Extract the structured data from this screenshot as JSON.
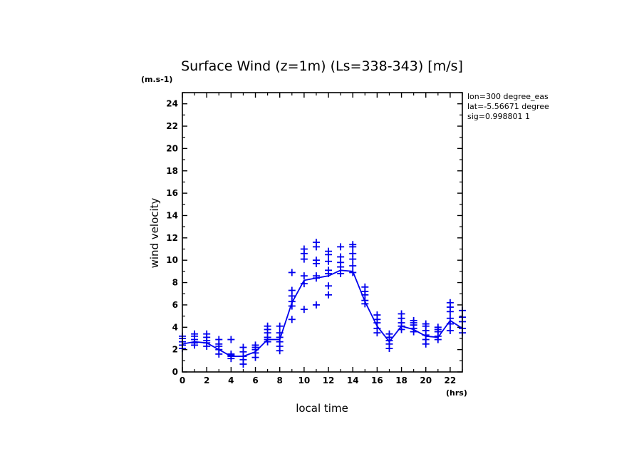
{
  "chart_data": {
    "type": "scatter",
    "title": "Surface Wind (z=1m) (Ls=338-343) [m/s]",
    "ylabel": "wind velocity",
    "xlabel": "local time",
    "y_unit": "(m.s-1)",
    "x_unit": "(hrs)",
    "xlim": [
      0,
      23
    ],
    "ylim": [
      0,
      25
    ],
    "xticks": [
      0,
      2,
      4,
      6,
      8,
      10,
      12,
      14,
      16,
      18,
      20,
      22
    ],
    "yticks": [
      0,
      2,
      4,
      6,
      8,
      10,
      12,
      14,
      16,
      18,
      20,
      22,
      24
    ],
    "grid": false,
    "info_lines": [
      "lon=300 degree_eas",
      "lat=-5.56671 degree",
      "sig=0.998801 1"
    ],
    "color": "#0000ee",
    "series": [
      {
        "style": "markers",
        "points": [
          [
            0,
            2.1
          ],
          [
            0,
            2.4
          ],
          [
            0,
            2.7
          ],
          [
            0,
            3.0
          ],
          [
            0,
            3.2
          ],
          [
            1,
            2.4
          ],
          [
            1,
            2.6
          ],
          [
            1,
            2.9
          ],
          [
            1,
            3.2
          ],
          [
            1,
            3.4
          ],
          [
            2,
            2.3
          ],
          [
            2,
            2.6
          ],
          [
            2,
            2.8
          ],
          [
            2,
            3.1
          ],
          [
            2,
            3.4
          ],
          [
            3,
            1.6
          ],
          [
            3,
            2.0
          ],
          [
            3,
            2.3
          ],
          [
            3,
            2.5
          ],
          [
            3,
            2.9
          ],
          [
            4,
            1.2
          ],
          [
            4,
            1.4
          ],
          [
            4,
            1.5
          ],
          [
            4,
            1.6
          ],
          [
            4,
            2.9
          ],
          [
            5,
            0.7
          ],
          [
            5,
            1.1
          ],
          [
            5,
            1.4
          ],
          [
            5,
            1.8
          ],
          [
            5,
            2.2
          ],
          [
            6,
            1.3
          ],
          [
            6,
            1.7
          ],
          [
            6,
            2.0
          ],
          [
            6,
            2.2
          ],
          [
            6,
            2.4
          ],
          [
            7,
            2.7
          ],
          [
            7,
            2.9
          ],
          [
            7,
            3.1
          ],
          [
            7,
            3.5
          ],
          [
            7,
            3.8
          ],
          [
            7,
            4.1
          ],
          [
            8,
            1.9
          ],
          [
            8,
            2.3
          ],
          [
            8,
            2.7
          ],
          [
            8,
            3.1
          ],
          [
            8,
            3.5
          ],
          [
            8,
            4.1
          ],
          [
            9,
            4.7
          ],
          [
            9,
            5.9
          ],
          [
            9,
            6.3
          ],
          [
            9,
            6.8
          ],
          [
            9,
            7.3
          ],
          [
            9,
            8.9
          ],
          [
            10,
            5.6
          ],
          [
            10,
            7.9
          ],
          [
            10,
            8.6
          ],
          [
            10,
            10.1
          ],
          [
            10,
            10.6
          ],
          [
            10,
            11.0
          ],
          [
            11,
            6.0
          ],
          [
            11,
            8.4
          ],
          [
            11,
            8.6
          ],
          [
            11,
            9.7
          ],
          [
            11,
            10.0
          ],
          [
            11,
            11.2
          ],
          [
            11,
            11.6
          ],
          [
            12,
            6.9
          ],
          [
            12,
            7.7
          ],
          [
            12,
            8.8
          ],
          [
            12,
            9.1
          ],
          [
            12,
            9.9
          ],
          [
            12,
            10.5
          ],
          [
            12,
            10.8
          ],
          [
            13,
            8.8
          ],
          [
            13,
            9.4
          ],
          [
            13,
            9.8
          ],
          [
            13,
            10.3
          ],
          [
            13,
            11.2
          ],
          [
            14,
            8.9
          ],
          [
            14,
            9.5
          ],
          [
            14,
            10.1
          ],
          [
            14,
            10.6
          ],
          [
            14,
            11.2
          ],
          [
            14,
            11.4
          ],
          [
            15,
            6.1
          ],
          [
            15,
            6.4
          ],
          [
            15,
            6.9
          ],
          [
            15,
            7.2
          ],
          [
            15,
            7.6
          ],
          [
            16,
            3.5
          ],
          [
            16,
            3.9
          ],
          [
            16,
            4.4
          ],
          [
            16,
            4.7
          ],
          [
            16,
            5.1
          ],
          [
            17,
            2.1
          ],
          [
            17,
            2.5
          ],
          [
            17,
            2.8
          ],
          [
            17,
            3.1
          ],
          [
            17,
            3.4
          ],
          [
            18,
            3.8
          ],
          [
            18,
            4.1
          ],
          [
            18,
            4.4
          ],
          [
            18,
            4.8
          ],
          [
            18,
            5.2
          ],
          [
            19,
            3.6
          ],
          [
            19,
            3.9
          ],
          [
            19,
            4.2
          ],
          [
            19,
            4.4
          ],
          [
            19,
            4.6
          ],
          [
            20,
            2.5
          ],
          [
            20,
            2.9
          ],
          [
            20,
            3.3
          ],
          [
            20,
            3.7
          ],
          [
            20,
            4.1
          ],
          [
            20,
            4.3
          ],
          [
            21,
            2.9
          ],
          [
            21,
            3.2
          ],
          [
            21,
            3.6
          ],
          [
            21,
            3.8
          ],
          [
            21,
            4.0
          ],
          [
            22,
            3.7
          ],
          [
            22,
            4.3
          ],
          [
            22,
            4.8
          ],
          [
            22,
            5.4
          ],
          [
            22,
            5.8
          ],
          [
            22,
            6.2
          ],
          [
            23,
            3.5
          ],
          [
            23,
            3.9
          ],
          [
            23,
            4.5
          ],
          [
            23,
            4.9
          ],
          [
            23,
            5.5
          ]
        ]
      },
      {
        "style": "line",
        "x": [
          0,
          1,
          2,
          3,
          4,
          5,
          6,
          7,
          8,
          9,
          10,
          11,
          12,
          13,
          14,
          15,
          16,
          17,
          18,
          19,
          20,
          21,
          22,
          23
        ],
        "y": [
          2.5,
          2.7,
          2.6,
          2.0,
          1.4,
          1.4,
          1.8,
          2.9,
          2.9,
          6.2,
          8.2,
          8.4,
          8.6,
          9.1,
          9.0,
          6.3,
          4.1,
          2.7,
          4.1,
          3.8,
          3.2,
          3.1,
          4.6,
          3.9
        ]
      }
    ]
  }
}
